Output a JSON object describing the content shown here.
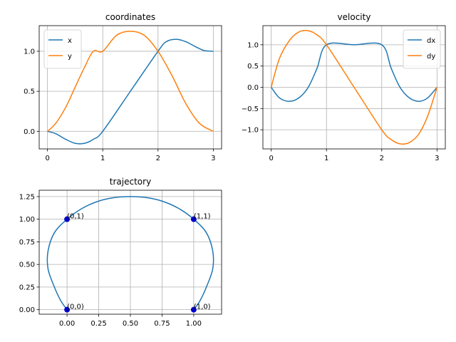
{
  "colors": {
    "blue": "#1f77b4",
    "orange": "#ff7f0e",
    "grid": "#b0b0b0",
    "marker": "#0000cc"
  },
  "chart_data": [
    {
      "type": "line",
      "title": "coordinates",
      "xlim": [
        -0.15,
        3.15
      ],
      "ylim": [
        -0.22,
        1.32
      ],
      "xticks": [
        0,
        1,
        2,
        3
      ],
      "xtick_labels": [
        "0",
        "1",
        "2",
        "3"
      ],
      "yticks": [
        0.0,
        0.5,
        1.0
      ],
      "ytick_labels": [
        "0.0",
        "0.5",
        "1.0"
      ],
      "grid": true,
      "legend": "upper-left",
      "series": [
        {
          "name": "x",
          "color": "#1f77b4",
          "x": [
            0,
            0.15,
            0.33,
            0.5,
            0.67,
            0.83,
            1.0,
            1.5,
            2.0,
            2.15,
            2.33,
            2.5,
            2.67,
            2.83,
            3.0
          ],
          "y": [
            0,
            -0.03,
            -0.1,
            -0.15,
            -0.15,
            -0.1,
            0,
            0.5,
            1.0,
            1.12,
            1.15,
            1.12,
            1.06,
            1.01,
            1.0
          ]
        },
        {
          "name": "y",
          "color": "#ff7f0e",
          "x": [
            0,
            0.15,
            0.33,
            0.5,
            0.67,
            0.83,
            1.0,
            1.25,
            1.5,
            1.75,
            2.0,
            2.25,
            2.5,
            2.75,
            3.0
          ],
          "y": [
            0,
            0.1,
            0.3,
            0.55,
            0.8,
            1.0,
            1.0,
            1.2,
            1.25,
            1.2,
            1.0,
            0.7,
            0.35,
            0.1,
            0
          ]
        }
      ]
    },
    {
      "type": "line",
      "title": "velocity",
      "xlim": [
        -0.15,
        3.15
      ],
      "ylim": [
        -1.45,
        1.45
      ],
      "xticks": [
        0,
        1,
        2,
        3
      ],
      "xtick_labels": [
        "0",
        "1",
        "2",
        "3"
      ],
      "yticks": [
        -1.0,
        -0.5,
        0.0,
        0.5,
        1.0
      ],
      "ytick_labels": [
        "−1.0",
        "−0.5",
        "0.0",
        "0.5",
        "1.0"
      ],
      "grid": true,
      "legend": "upper-right",
      "series": [
        {
          "name": "dx",
          "color": "#1f77b4",
          "x": [
            0,
            0.15,
            0.33,
            0.5,
            0.67,
            0.83,
            1.0,
            1.5,
            2.0,
            2.17,
            2.33,
            2.5,
            2.67,
            2.83,
            3.0
          ],
          "y": [
            0,
            -0.25,
            -0.33,
            -0.25,
            0,
            0.45,
            1.0,
            1.0,
            1.0,
            0.45,
            0,
            -0.25,
            -0.33,
            -0.25,
            0
          ]
        },
        {
          "name": "dy",
          "color": "#ff7f0e",
          "x": [
            0,
            0.15,
            0.33,
            0.5,
            0.67,
            0.83,
            1.0,
            1.5,
            2.0,
            2.17,
            2.33,
            2.5,
            2.67,
            2.83,
            3.0
          ],
          "y": [
            0,
            0.68,
            1.1,
            1.3,
            1.33,
            1.23,
            1.0,
            0,
            -1.0,
            -1.23,
            -1.33,
            -1.3,
            -1.1,
            -0.68,
            0
          ]
        }
      ]
    },
    {
      "type": "line",
      "title": "trajectory",
      "xlim": [
        -0.22,
        1.22
      ],
      "ylim": [
        -0.05,
        1.32
      ],
      "xticks": [
        0.0,
        0.25,
        0.5,
        0.75,
        1.0
      ],
      "xtick_labels": [
        "0.00",
        "0.25",
        "0.50",
        "0.75",
        "1.00"
      ],
      "yticks": [
        0.0,
        0.25,
        0.5,
        0.75,
        1.0,
        1.25
      ],
      "ytick_labels": [
        "0.00",
        "0.25",
        "0.50",
        "0.75",
        "1.00",
        "1.25"
      ],
      "grid": true,
      "series": [
        {
          "color": "#1f77b4",
          "x": [
            0,
            -0.05,
            -0.1,
            -0.15,
            -0.15,
            -0.1,
            0,
            0.12,
            0.25,
            0.38,
            0.5,
            0.62,
            0.75,
            0.88,
            1.0,
            1.1,
            1.15,
            1.15,
            1.1,
            1.05,
            1.0
          ],
          "y": [
            0,
            0.1,
            0.25,
            0.45,
            0.65,
            0.85,
            1.0,
            1.12,
            1.2,
            1.24,
            1.25,
            1.24,
            1.2,
            1.12,
            1.0,
            0.85,
            0.65,
            0.45,
            0.25,
            0.1,
            0
          ]
        }
      ],
      "points": [
        {
          "x": 0,
          "y": 1,
          "label": "(0,1)"
        },
        {
          "x": 1,
          "y": 1,
          "label": "(1,1)"
        },
        {
          "x": 0,
          "y": 0,
          "label": "(0,0)"
        },
        {
          "x": 1,
          "y": 0,
          "label": "(1,0)"
        }
      ]
    }
  ]
}
